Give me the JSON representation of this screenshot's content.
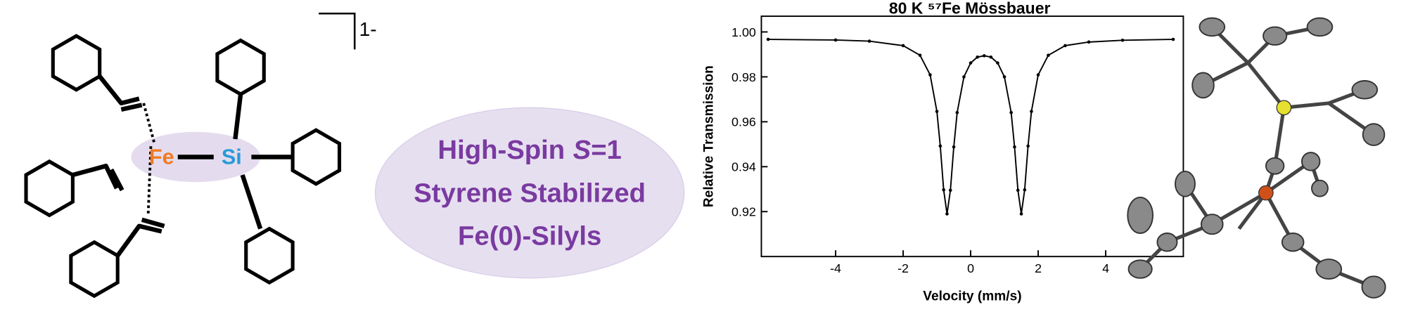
{
  "structure_labels": {
    "charge": "1-",
    "fe": "Fe",
    "si": "Si"
  },
  "caption": {
    "line1": [
      "High-Spin",
      "S",
      "=1"
    ],
    "line2": "Styrene Stabilized",
    "line3": "Fe(0)-Silyls"
  },
  "chart_data": {
    "type": "line",
    "title": "80 K ⁵⁷Fe Mössbauer",
    "x_label": "Velocity (mm/s)",
    "y_label": "Relative Transmission",
    "x": [
      -6,
      -4,
      -3,
      -2,
      -1.5,
      -1.2,
      -1.0,
      -0.9,
      -0.8,
      -0.7,
      -0.6,
      -0.5,
      -0.4,
      -0.2,
      0,
      0.2,
      0.4,
      0.6,
      0.8,
      1.0,
      1.2,
      1.3,
      1.4,
      1.5,
      1.6,
      1.7,
      1.8,
      2.0,
      2.3,
      2.8,
      3.5,
      4.5,
      6
    ],
    "series": [
      {
        "name": "spectrum",
        "color": "#000000",
        "values": [
          0.9967,
          0.9964,
          0.9959,
          0.9939,
          0.9896,
          0.9809,
          0.9646,
          0.9492,
          0.9297,
          0.919,
          0.9295,
          0.9488,
          0.9641,
          0.98,
          0.9862,
          0.9888,
          0.9894,
          0.9888,
          0.9862,
          0.98,
          0.9641,
          0.9488,
          0.9295,
          0.919,
          0.9297,
          0.9492,
          0.9646,
          0.9809,
          0.9896,
          0.9939,
          0.9955,
          0.9963,
          0.9967
        ]
      }
    ],
    "xlim": [
      -6.2,
      6.3
    ],
    "ylim": [
      0.9,
      1.007
    ],
    "xticks": [
      -4,
      -2,
      0,
      2,
      4
    ],
    "yticks": [
      0.92,
      0.94,
      0.96,
      0.98,
      {
        "value": 1,
        "label": "1.00"
      }
    ]
  }
}
